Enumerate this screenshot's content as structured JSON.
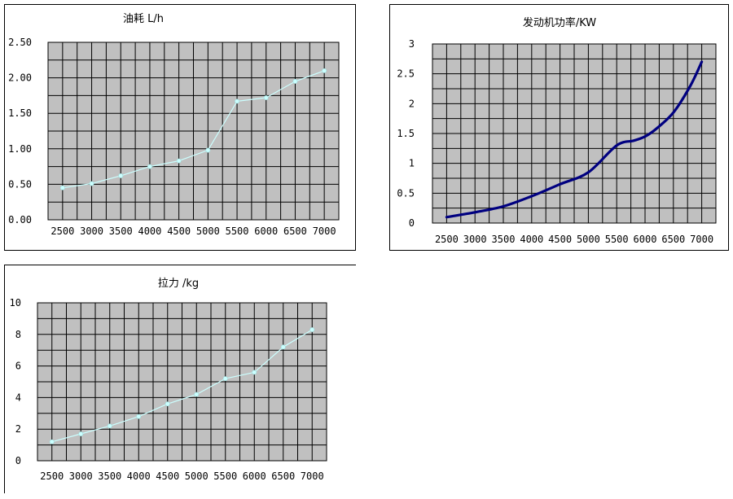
{
  "chart_data": [
    {
      "id": "fuel",
      "type": "line",
      "title": "油耗 L/h",
      "x": [
        2500,
        3000,
        3500,
        4000,
        4500,
        5000,
        5500,
        6000,
        6500,
        7000
      ],
      "x_tick_labels": [
        "2500",
        "3000",
        "3500",
        "4000",
        "4500",
        "5000",
        "5500",
        "6000",
        "6500",
        "7000"
      ],
      "values": [
        0.45,
        0.51,
        0.62,
        0.75,
        0.83,
        0.98,
        1.67,
        1.72,
        1.95,
        2.1
      ],
      "ylim": [
        0,
        2.5
      ],
      "y_ticks": [
        "0.00",
        "0.50",
        "1.00",
        "1.50",
        "2.00",
        "2.50"
      ],
      "grid": true,
      "markers": true,
      "plot_bg": "#c0c0c0",
      "line_color": "#ccffff"
    },
    {
      "id": "power",
      "type": "line",
      "title": "发动机功率/KW",
      "x": [
        2500,
        3000,
        3500,
        4000,
        4500,
        5000,
        5500,
        5800,
        6000,
        6200,
        6500,
        6800,
        7000
      ],
      "x_tick_labels": [
        "2500",
        "3000",
        "3500",
        "4000",
        "4500",
        "5000",
        "5500",
        "6000",
        "6500",
        "7000"
      ],
      "values": [
        0.1,
        0.18,
        0.28,
        0.45,
        0.65,
        0.85,
        1.3,
        1.38,
        1.45,
        1.58,
        1.85,
        2.3,
        2.7
      ],
      "ylim": [
        0,
        3
      ],
      "y_ticks": [
        "0",
        "0.5",
        "1",
        "1.5",
        "2",
        "2.5",
        "3"
      ],
      "grid": true,
      "markers": false,
      "plot_bg": "#c0c0c0",
      "line_color": "#000080"
    },
    {
      "id": "pull",
      "type": "line",
      "title": "拉力 /kg",
      "x": [
        2500,
        3000,
        3500,
        4000,
        4500,
        5000,
        5500,
        6000,
        6500,
        7000
      ],
      "x_tick_labels": [
        "2500",
        "3000",
        "3500",
        "4000",
        "4500",
        "5000",
        "5500",
        "6000",
        "6500",
        "7000"
      ],
      "values": [
        1.2,
        1.7,
        2.2,
        2.8,
        3.6,
        4.2,
        5.2,
        5.6,
        7.2,
        8.3
      ],
      "ylim": [
        0,
        10
      ],
      "y_ticks": [
        "0",
        "2",
        "4",
        "6",
        "8",
        "10"
      ],
      "grid": true,
      "markers": true,
      "plot_bg": "#c0c0c0",
      "line_color": "#ccffff"
    }
  ]
}
